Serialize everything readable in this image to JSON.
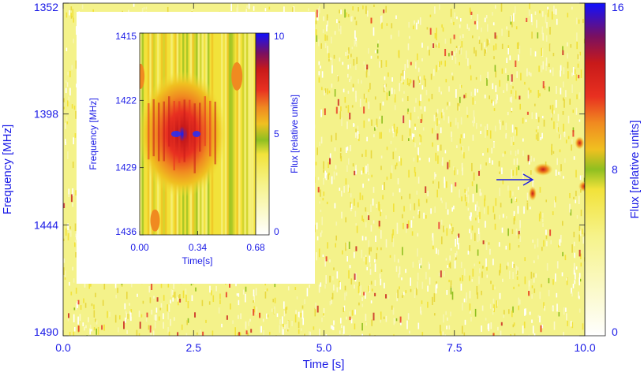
{
  "chart_data": [
    {
      "type": "heatmap",
      "xlabel": "Time [s]",
      "ylabel": "Frequency [MHz]",
      "colorbar_label": "Flux [relative units]",
      "xlim": [
        0.0,
        10.0
      ],
      "ylim": [
        1352,
        1490
      ],
      "x_ticks": [
        "0.0",
        "2.5",
        "5.0",
        "7.5",
        "10.0"
      ],
      "x_tick_values": [
        0.0,
        2.5,
        5.0,
        7.5,
        10.0
      ],
      "y_ticks": [
        "1352",
        "1398",
        "1444",
        "1490"
      ],
      "y_tick_values": [
        1352,
        1398,
        1444,
        1490
      ],
      "colorbar_range": [
        0,
        16
      ],
      "colorbar_ticks": [
        "16",
        "8",
        "0"
      ],
      "colorbar_tick_values": [
        16,
        8,
        0
      ],
      "features": [
        {
          "name": "burst",
          "time": 9.2,
          "freq": 1421
        },
        {
          "name": "burst",
          "time": 9.0,
          "freq": 1431
        },
        {
          "name": "burst",
          "time": 9.9,
          "freq": 1410
        },
        {
          "name": "burst",
          "time": 10.0,
          "freq": 1428
        }
      ],
      "annotation": {
        "type": "arrow",
        "points_to_time": 9.0,
        "points_to_freq": 1421
      }
    },
    {
      "type": "heatmap",
      "xlabel": "Time[s]",
      "ylabel": "Frequency [MHz]",
      "colorbar_label": "Flux [relative units]",
      "xlim": [
        0.0,
        0.68
      ],
      "ylim": [
        1415,
        1436
      ],
      "x_ticks": [
        "0.00",
        "0.34",
        "0.68"
      ],
      "x_tick_values": [
        0.0,
        0.34,
        0.68
      ],
      "y_ticks": [
        "1415",
        "1422",
        "1429",
        "1436"
      ],
      "y_tick_values": [
        1415,
        1422,
        1429,
        1436
      ],
      "colorbar_range": [
        0,
        10
      ],
      "colorbar_ticks": [
        "10",
        "5",
        "0"
      ],
      "colorbar_tick_values": [
        10,
        5,
        0
      ],
      "pulse_center": {
        "time": 0.25,
        "freq": 1425.5,
        "peak_flux": 9
      }
    }
  ],
  "colors": {
    "axis_text": "#1a1ae6",
    "background_field": "#f4f28a",
    "colormap": [
      "#ffffff",
      "#f6f38a",
      "#f2e23a",
      "#c8d12a",
      "#8fbf20",
      "#f0c020",
      "#f08a20",
      "#e83020",
      "#c81a1a",
      "#7a1060",
      "#3020c0",
      "#1010ff"
    ]
  }
}
